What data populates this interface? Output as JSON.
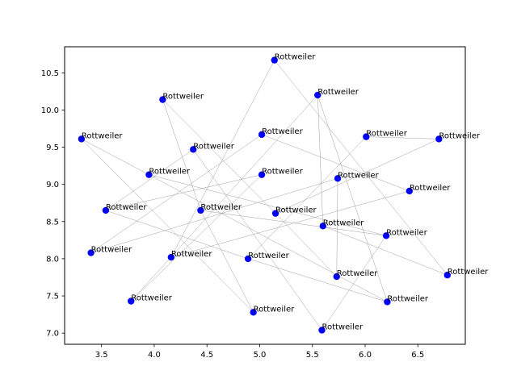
{
  "chart_data": {
    "type": "scatter",
    "title": "",
    "xlabel": "",
    "ylabel": "",
    "xlim": [
      3.15,
      6.95
    ],
    "ylim": [
      6.85,
      10.85
    ],
    "xticks": [
      3.5,
      4.0,
      4.5,
      5.0,
      5.5,
      6.0,
      6.5
    ],
    "xtick_labels": [
      "3.5",
      "4.0",
      "4.5",
      "5.0",
      "5.5",
      "6.0",
      "6.5"
    ],
    "yticks": [
      7.0,
      7.5,
      8.0,
      8.5,
      9.0,
      9.5,
      10.0,
      10.5
    ],
    "ytick_labels": [
      "7.0",
      "7.5",
      "8.0",
      "8.5",
      "9.0",
      "9.5",
      "10.0",
      "10.5"
    ],
    "grid": false,
    "legend": "none",
    "marker_color": "#0000ff",
    "edge_color": "#a0a0a0",
    "points": [
      {
        "x": 5.14,
        "y": 10.67,
        "label": "Rottweiler"
      },
      {
        "x": 5.55,
        "y": 10.2,
        "label": "Rottweiler"
      },
      {
        "x": 4.08,
        "y": 10.14,
        "label": "Rottweiler"
      },
      {
        "x": 3.31,
        "y": 9.61,
        "label": "Rottweiler"
      },
      {
        "x": 5.02,
        "y": 9.67,
        "label": "Rottweiler"
      },
      {
        "x": 6.01,
        "y": 9.64,
        "label": "Rottweiler"
      },
      {
        "x": 6.7,
        "y": 9.61,
        "label": "Rottweiler"
      },
      {
        "x": 4.37,
        "y": 9.47,
        "label": "Rottweiler"
      },
      {
        "x": 3.95,
        "y": 9.13,
        "label": "Rottweiler"
      },
      {
        "x": 5.02,
        "y": 9.13,
        "label": "Rottweiler"
      },
      {
        "x": 5.74,
        "y": 9.08,
        "label": "Rottweiler"
      },
      {
        "x": 6.42,
        "y": 8.91,
        "label": "Rottweiler"
      },
      {
        "x": 3.54,
        "y": 8.65,
        "label": "Rottweiler"
      },
      {
        "x": 4.44,
        "y": 8.65,
        "label": "Rottweiler"
      },
      {
        "x": 5.15,
        "y": 8.61,
        "label": "Rottweiler"
      },
      {
        "x": 5.6,
        "y": 8.44,
        "label": "Rottweiler"
      },
      {
        "x": 6.2,
        "y": 8.31,
        "label": "Rottweiler"
      },
      {
        "x": 3.4,
        "y": 8.08,
        "label": "Rottweiler"
      },
      {
        "x": 4.16,
        "y": 8.02,
        "label": "Rottweiler"
      },
      {
        "x": 4.89,
        "y": 8.0,
        "label": "Rottweiler"
      },
      {
        "x": 5.73,
        "y": 7.76,
        "label": "Rottweiler"
      },
      {
        "x": 6.78,
        "y": 7.78,
        "label": "Rottweiler"
      },
      {
        "x": 3.78,
        "y": 7.43,
        "label": "Rottweiler"
      },
      {
        "x": 6.21,
        "y": 7.42,
        "label": "Rottweiler"
      },
      {
        "x": 4.94,
        "y": 7.28,
        "label": "Rottweiler"
      },
      {
        "x": 5.59,
        "y": 7.04,
        "label": "Rottweiler"
      }
    ],
    "edges": [
      [
        0,
        21
      ],
      [
        0,
        18
      ],
      [
        1,
        22
      ],
      [
        1,
        23
      ],
      [
        1,
        15
      ],
      [
        2,
        13
      ],
      [
        2,
        14
      ],
      [
        3,
        8
      ],
      [
        3,
        24
      ],
      [
        4,
        17
      ],
      [
        4,
        11
      ],
      [
        5,
        6
      ],
      [
        5,
        19
      ],
      [
        6,
        14
      ],
      [
        7,
        25
      ],
      [
        7,
        12
      ],
      [
        8,
        23
      ],
      [
        8,
        16
      ],
      [
        9,
        12
      ],
      [
        9,
        22
      ],
      [
        10,
        17
      ],
      [
        10,
        20
      ],
      [
        11,
        18
      ],
      [
        12,
        19
      ],
      [
        13,
        16
      ],
      [
        13,
        24
      ],
      [
        14,
        20
      ],
      [
        15,
        21
      ],
      [
        16,
        25
      ],
      [
        19,
        23
      ]
    ]
  }
}
